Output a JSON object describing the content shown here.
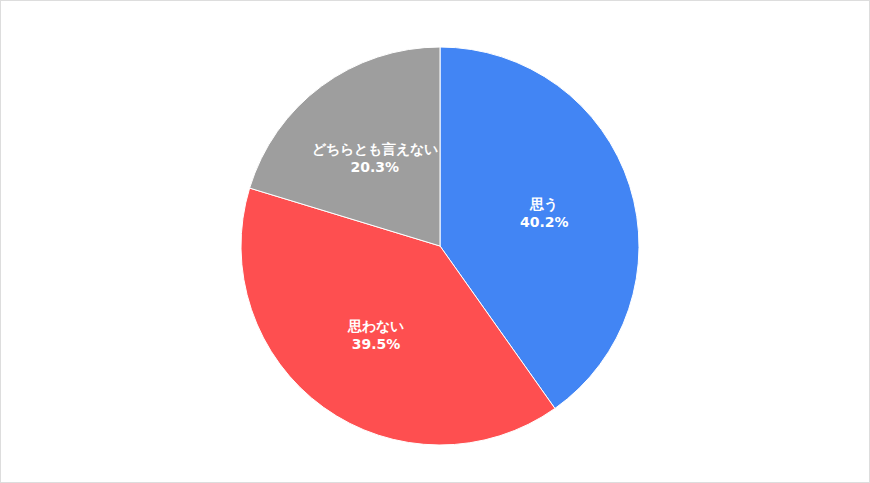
{
  "chart_data": {
    "type": "pie",
    "categories": [
      "思う",
      "思わない",
      "どちらとも言えない"
    ],
    "values": [
      40.2,
      39.5,
      20.3
    ],
    "value_labels": [
      "40.2%",
      "39.5%",
      "20.3%"
    ],
    "colors": [
      "#4285f4",
      "#fe4f50",
      "#9e9e9e"
    ],
    "data_labels": true
  }
}
